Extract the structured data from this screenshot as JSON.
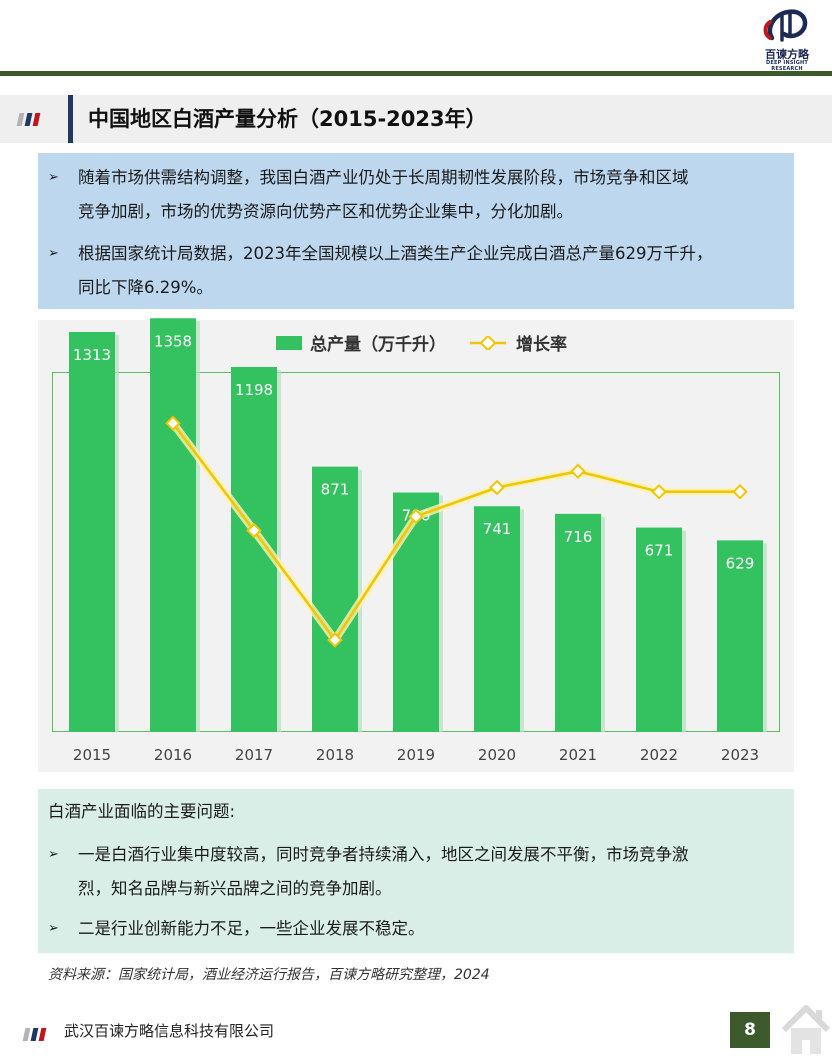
{
  "brand": {
    "name": "百谏方略",
    "tagline": "DEEP INSIGHT RESEARCH"
  },
  "title": "中国地区白酒产量分析（2015-2023年）",
  "summary": {
    "bullets": [
      {
        "line1": "随着市场供需结构调整，我国白酒产业仍处于长周期韧性发展阶段，市场竞争和区域",
        "line2": "竞争加剧，市场的优势资源向优势产区和优势企业集中，分化加剧。"
      },
      {
        "line1": "根据国家统计局数据，2023年全国规模以上酒类生产企业完成白酒总产量629万千升，",
        "line2": "同比下降6.29%。"
      }
    ]
  },
  "chart_data": {
    "type": "bar",
    "categories": [
      "2015",
      "2016",
      "2017",
      "2018",
      "2019",
      "2020",
      "2021",
      "2022",
      "2023"
    ],
    "series": [
      {
        "name": "总产量（万千升）",
        "type": "bar",
        "values": [
          1313,
          1358,
          1198,
          871,
          786,
          741,
          716,
          671,
          629
        ],
        "color": "#33c25f"
      },
      {
        "name": "增长率",
        "type": "line",
        "values": [
          null,
          3.4,
          -11.8,
          -27.3,
          -9.8,
          -5.7,
          -3.4,
          -6.3,
          -6.3
        ],
        "color": "#f2c500",
        "unlabeled": true
      }
    ],
    "ylim_bar": [
      0,
      1500
    ],
    "ylim_line": [
      -30,
      5
    ],
    "grid": false,
    "legend": "top"
  },
  "issues": {
    "heading": "白酒产业面临的主要问题:",
    "bullets": [
      {
        "line1": "一是白酒行业集中度较高，同时竞争者持续涌入，地区之间发展不平衡，市场竞争激",
        "line2": "烈，知名品牌与新兴品牌之间的竞争加剧。"
      },
      {
        "line1": "二是行业创新能力不足，一些企业发展不稳定。",
        "line2": ""
      }
    ]
  },
  "source": "资料来源：国家统计局，酒业经济运行报告，百谏方略研究整理，2024",
  "footer": {
    "company": "武汉百谏方略信息科技有限公司",
    "page": "8"
  },
  "colors": {
    "accent_dark_green": "#3d5a2d",
    "title_bar_navy": "#1f3864",
    "bar_green": "#33c25f",
    "line_yellow": "#f2c500",
    "summary_bg": "#bdd7ee",
    "issues_bg": "#d9eee6",
    "flag_gray": "#b4b4b4",
    "flag_navy": "#1f3864",
    "flag_red": "#c0161c"
  }
}
